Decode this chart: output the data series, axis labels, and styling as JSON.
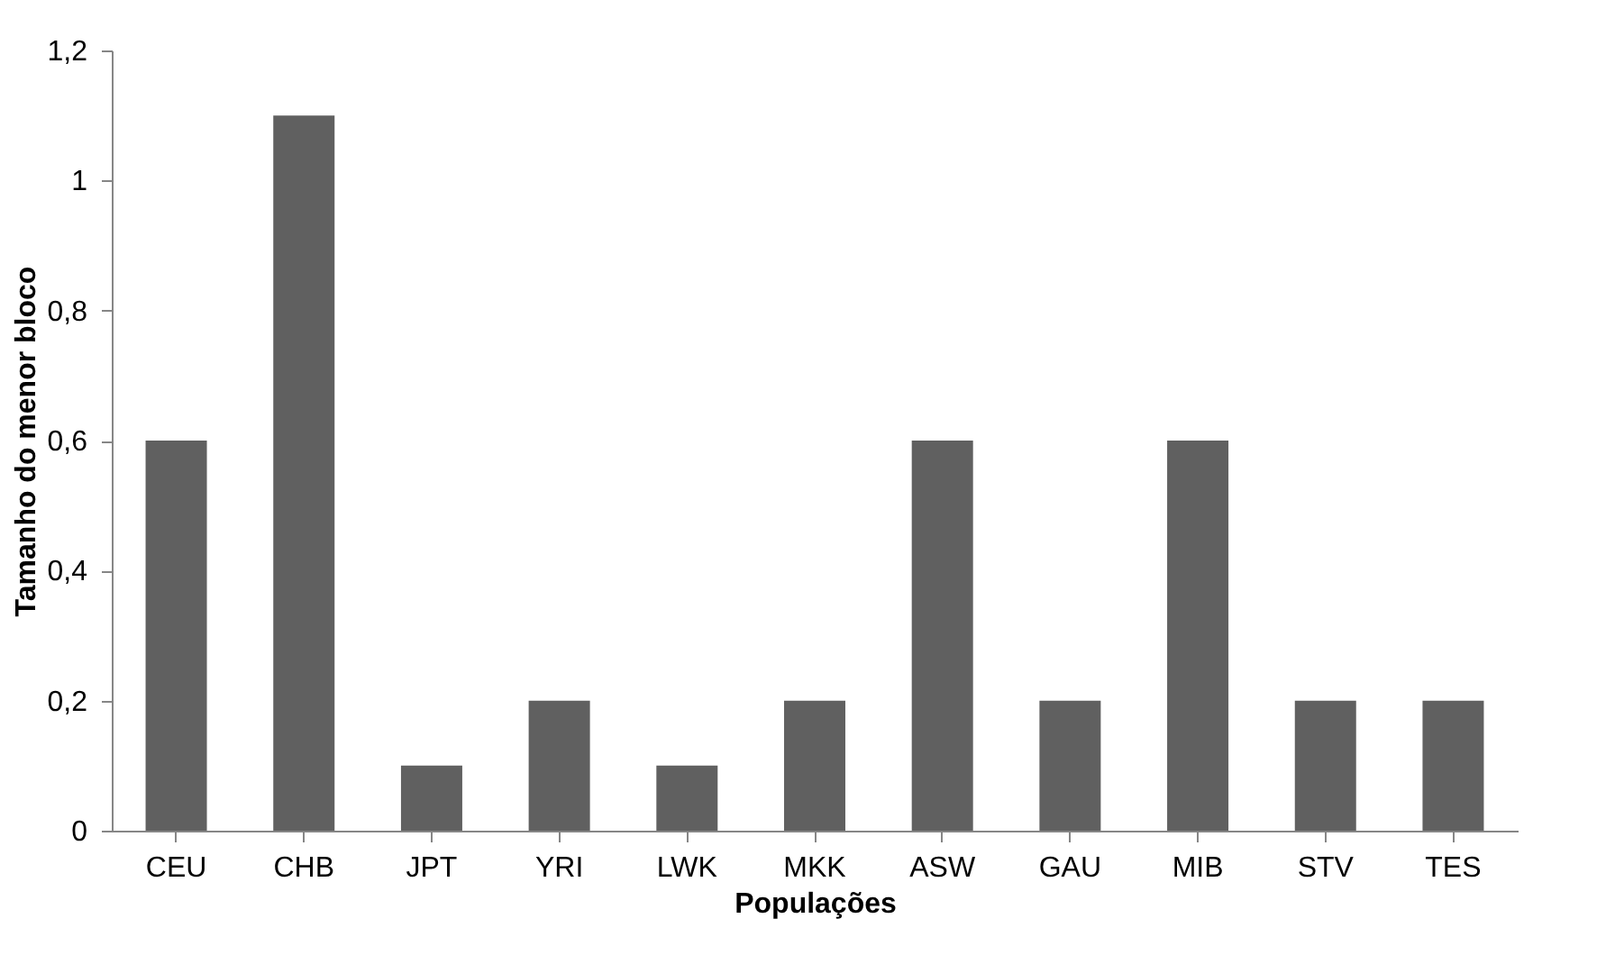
{
  "chart_data": {
    "type": "bar",
    "xlabel": "Populações",
    "ylabel": "Tamanho do menor bloco",
    "categories": [
      "CEU",
      "CHB",
      "JPT",
      "YRI",
      "LWK",
      "MKK",
      "ASW",
      "GAU",
      "MIB",
      "STV",
      "TES"
    ],
    "values": [
      0.6,
      1.1,
      0.1,
      0.2,
      0.1,
      0.2,
      0.6,
      0.2,
      0.6,
      0.2,
      0.2
    ],
    "color": "#606060",
    "ylim": [
      0,
      1.2
    ],
    "yticks": [
      {
        "value": 0,
        "label": "0"
      },
      {
        "value": 0.2,
        "label": "0,2"
      },
      {
        "value": 0.4,
        "label": "0,4"
      },
      {
        "value": 0.6,
        "label": "0,6"
      },
      {
        "value": 0.8,
        "label": "0,8"
      },
      {
        "value": 1,
        "label": "1"
      },
      {
        "value": 1.2,
        "label": "1,2"
      }
    ],
    "grid": false
  }
}
